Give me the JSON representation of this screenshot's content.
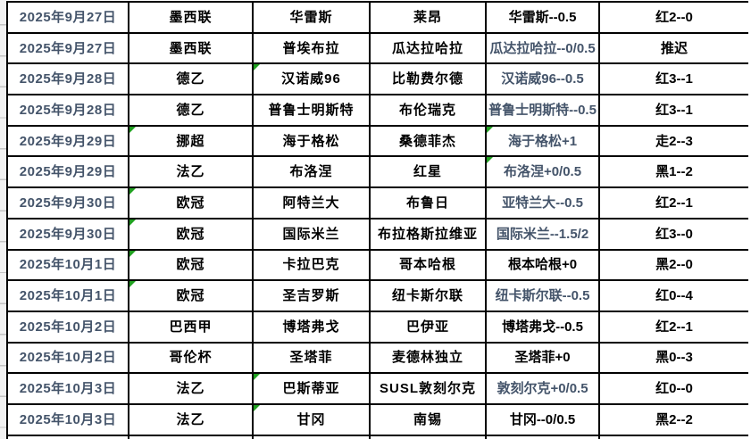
{
  "app": {
    "type": "spreadsheet-match-table",
    "language": "zh-CN"
  },
  "colors": {
    "border": "#000000",
    "date_text": "#44546A",
    "slate_handicap_text": "#44546A",
    "black_text": "#000000",
    "triangle_indicator": "#21a121",
    "left_sliver_bg": "#f2f2f2"
  },
  "table": {
    "column_keys": [
      "date",
      "league",
      "home",
      "away",
      "handicap",
      "result"
    ],
    "partial_bottom_row": true,
    "rows": [
      {
        "date": "2025年9月27日",
        "league": "墨西联",
        "home": "华雷斯",
        "away": "莱昂",
        "handicap": "华雷斯--0.5",
        "result": "红2--0",
        "handicap_tone": "black",
        "triangles": []
      },
      {
        "date": "2025年9月27日",
        "league": "墨西联",
        "home": "普埃布拉",
        "away": "瓜达拉哈拉",
        "handicap": "瓜达拉哈拉--0/0.5",
        "result": "推迟",
        "handicap_tone": "slate",
        "triangles": []
      },
      {
        "date": "2025年9月28日",
        "league": "德乙",
        "home": "汉诺威96",
        "away": "比勒费尔德",
        "handicap": "汉诺威96--0.5",
        "result": "红3--1",
        "handicap_tone": "slate",
        "triangles": [
          "home"
        ]
      },
      {
        "date": "2025年9月28日",
        "league": "德乙",
        "home": "普鲁士明斯特",
        "away": "布伦瑞克",
        "handicap": "普鲁士明斯特--0.5",
        "result": "红3--1",
        "handicap_tone": "slate",
        "triangles": []
      },
      {
        "date": "2025年9月29日",
        "league": "挪超",
        "home": "海于格松",
        "away": "桑德菲杰",
        "handicap": "海于格松+1",
        "result": "走2--3",
        "handicap_tone": "slate",
        "triangles": [
          "league",
          "handicap"
        ]
      },
      {
        "date": "2025年9月29日",
        "league": "法乙",
        "home": "布洛涅",
        "away": "红星",
        "handicap": "布洛涅+0/0.5",
        "result": "黑1--2",
        "handicap_tone": "slate",
        "triangles": [
          "handicap"
        ]
      },
      {
        "date": "2025年9月30日",
        "league": "欧冠",
        "home": "阿特兰大",
        "away": "布鲁日",
        "handicap": "亚特兰大--0.5",
        "result": "红2--1",
        "handicap_tone": "slate",
        "triangles": [
          "league"
        ]
      },
      {
        "date": "2025年9月30日",
        "league": "欧冠",
        "home": "国际米兰",
        "away": "布拉格斯拉维亚",
        "handicap": "国际米兰--1.5/2",
        "result": "红3--0",
        "handicap_tone": "slate",
        "triangles": [
          "league"
        ]
      },
      {
        "date": "2025年10月1日",
        "league": "欧冠",
        "home": "卡拉巴克",
        "away": "哥本哈根",
        "handicap": "根本哈根+0",
        "result": "黑2--0",
        "handicap_tone": "black",
        "triangles": [
          "league"
        ]
      },
      {
        "date": "2025年10月1日",
        "league": "欧冠",
        "home": "圣吉罗斯",
        "away": "纽卡斯尔联",
        "handicap": "纽卡斯尔联--0.5",
        "result": "红0--4",
        "handicap_tone": "slate",
        "triangles": [
          "league"
        ]
      },
      {
        "date": "2025年10月2日",
        "league": "巴西甲",
        "home": "博塔弗戈",
        "away": "巴伊亚",
        "handicap": "博塔弗戈--0.5",
        "result": "红2--1",
        "handicap_tone": "black",
        "triangles": []
      },
      {
        "date": "2025年10月2日",
        "league": "哥伦杯",
        "home": "圣塔菲",
        "away": "麦德林独立",
        "handicap": "圣塔菲+0",
        "result": "黑0--3",
        "handicap_tone": "black",
        "triangles": []
      },
      {
        "date": "2025年10月3日",
        "league": "法乙",
        "home": "巴斯蒂亚",
        "away": "SUSL敦刻尔克",
        "handicap": "敦刻尔克+0/0.5",
        "result": "红0--0",
        "handicap_tone": "slate",
        "triangles": [
          "home"
        ]
      },
      {
        "date": "2025年10月3日",
        "league": "法乙",
        "home": "甘冈",
        "away": "南锡",
        "handicap": "甘冈--0/0.5",
        "result": "黑2--2",
        "handicap_tone": "black",
        "triangles": [
          "home"
        ]
      }
    ]
  }
}
